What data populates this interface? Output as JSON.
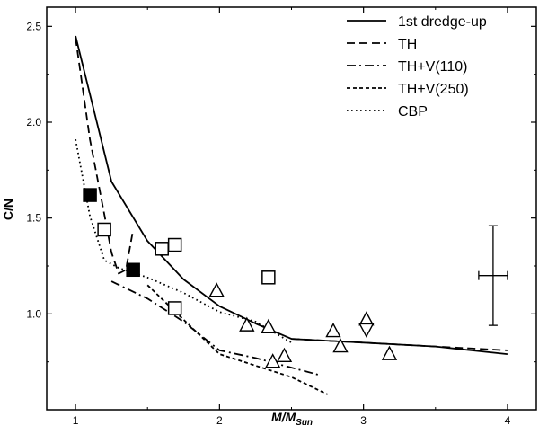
{
  "chart_data": {
    "type": "line",
    "title": "",
    "xlabel": {
      "main": "M/M",
      "sub": "Sun"
    },
    "ylabel": "C/N",
    "xlim": [
      0.8,
      4.2
    ],
    "ylim": [
      0.5,
      2.6
    ],
    "xticks": [
      1,
      2,
      3,
      4
    ],
    "yticks": [
      1.0,
      1.5,
      2.0,
      2.5
    ],
    "yticklabels": [
      "1.0",
      "1.5",
      "2.0",
      "2.5"
    ],
    "grid": false,
    "legend_position": "top-right",
    "series": [
      {
        "name": "1st dredge-up",
        "style": "solid",
        "x": [
          1.0,
          1.25,
          1.5,
          1.75,
          2.0,
          2.25,
          2.5,
          3.0,
          3.5,
          4.0
        ],
        "y": [
          2.45,
          1.69,
          1.38,
          1.18,
          1.04,
          0.95,
          0.87,
          0.85,
          0.83,
          0.79
        ]
      },
      {
        "name": "TH",
        "style": "dashed",
        "x": [
          1.0,
          1.1,
          1.2,
          1.25,
          1.3,
          1.35,
          1.4
        ],
        "y": [
          2.44,
          1.91,
          1.52,
          1.32,
          1.21,
          1.23,
          1.44
        ]
      },
      {
        "name": "TH",
        "style": "dashed",
        "x": [
          2.5,
          3.0,
          3.5,
          4.0
        ],
        "y": [
          0.87,
          0.85,
          0.83,
          0.81
        ]
      },
      {
        "name": "TH+V(110)",
        "style": "dashdot",
        "x": [
          1.25,
          1.5,
          1.75,
          2.0,
          2.25,
          2.5,
          2.7
        ],
        "y": [
          1.17,
          1.08,
          0.96,
          0.81,
          0.77,
          0.72,
          0.68
        ]
      },
      {
        "name": "TH+V(250)",
        "style": "short-dash",
        "x": [
          1.5,
          2.0,
          2.5,
          2.75
        ],
        "y": [
          1.15,
          0.79,
          0.67,
          0.58
        ]
      },
      {
        "name": "CBP",
        "style": "dotted",
        "x": [
          1.0,
          1.1,
          1.2,
          1.3,
          1.5,
          1.75,
          2.0,
          2.25,
          2.5
        ],
        "y": [
          1.91,
          1.51,
          1.28,
          1.24,
          1.19,
          1.11,
          1.01,
          0.96,
          0.85
        ]
      }
    ],
    "observations": [
      {
        "marker": "filled-square",
        "x": [
          1.1,
          1.4
        ],
        "y": [
          1.62,
          1.23
        ]
      },
      {
        "marker": "open-square",
        "x": [
          1.2,
          1.6,
          1.69,
          1.69,
          2.34
        ],
        "y": [
          1.44,
          1.34,
          1.36,
          1.03,
          1.19
        ]
      },
      {
        "marker": "open-triangle",
        "x": [
          1.98,
          2.19,
          2.34,
          2.37,
          2.45,
          2.79,
          2.84,
          3.02,
          3.18
        ],
        "y": [
          1.12,
          0.94,
          0.93,
          0.75,
          0.78,
          0.91,
          0.83,
          0.97,
          0.79
        ]
      },
      {
        "marker": "open-triangle-down",
        "x": [
          3.02
        ],
        "y": [
          0.92
        ]
      }
    ],
    "error_bar": {
      "x": 3.9,
      "y": 1.2,
      "x_err": 0.1,
      "y_err": 0.26
    }
  }
}
